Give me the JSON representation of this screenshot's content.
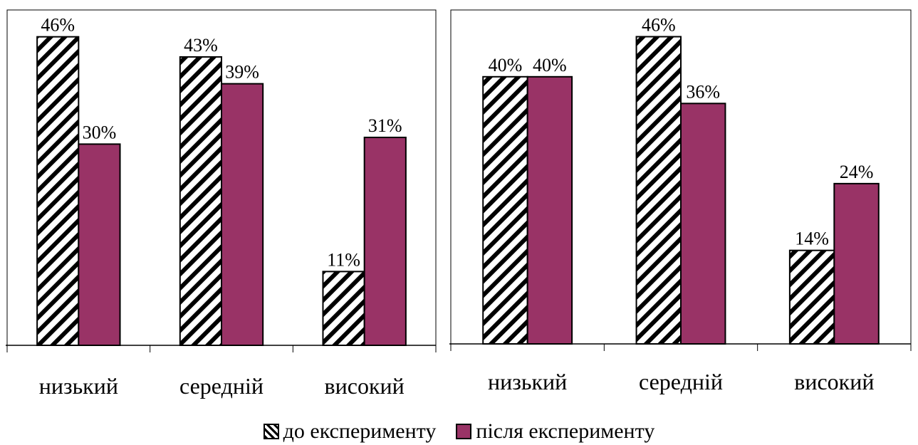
{
  "chart_data": [
    {
      "type": "bar",
      "categories": [
        "низький",
        "середній",
        "високий"
      ],
      "series": [
        {
          "name": "до експерименту",
          "values": [
            46,
            43,
            11
          ],
          "labels": [
            "46%",
            "43%",
            "11%"
          ]
        },
        {
          "name": "після експерименту",
          "values": [
            30,
            39,
            31
          ],
          "labels": [
            "30%",
            "39%",
            "31%"
          ]
        }
      ],
      "ylim": [
        0,
        50
      ],
      "grid": false,
      "legend": "bottom"
    },
    {
      "type": "bar",
      "categories": [
        "низький",
        "середній",
        "високий"
      ],
      "series": [
        {
          "name": "до експерименту",
          "values": [
            40,
            46,
            14
          ],
          "labels": [
            "40%",
            "46%",
            "14%"
          ]
        },
        {
          "name": "після експерименту",
          "values": [
            40,
            36,
            24
          ],
          "labels": [
            "40%",
            "36%",
            "24%"
          ]
        }
      ],
      "ylim": [
        0,
        50
      ],
      "grid": false,
      "legend": "bottom"
    }
  ],
  "legend": {
    "before_label": "до експерименту",
    "after_label": "після експерименту"
  },
  "colors": {
    "after": "#993366",
    "before_hatch": "#000000",
    "background": "#ffffff"
  }
}
